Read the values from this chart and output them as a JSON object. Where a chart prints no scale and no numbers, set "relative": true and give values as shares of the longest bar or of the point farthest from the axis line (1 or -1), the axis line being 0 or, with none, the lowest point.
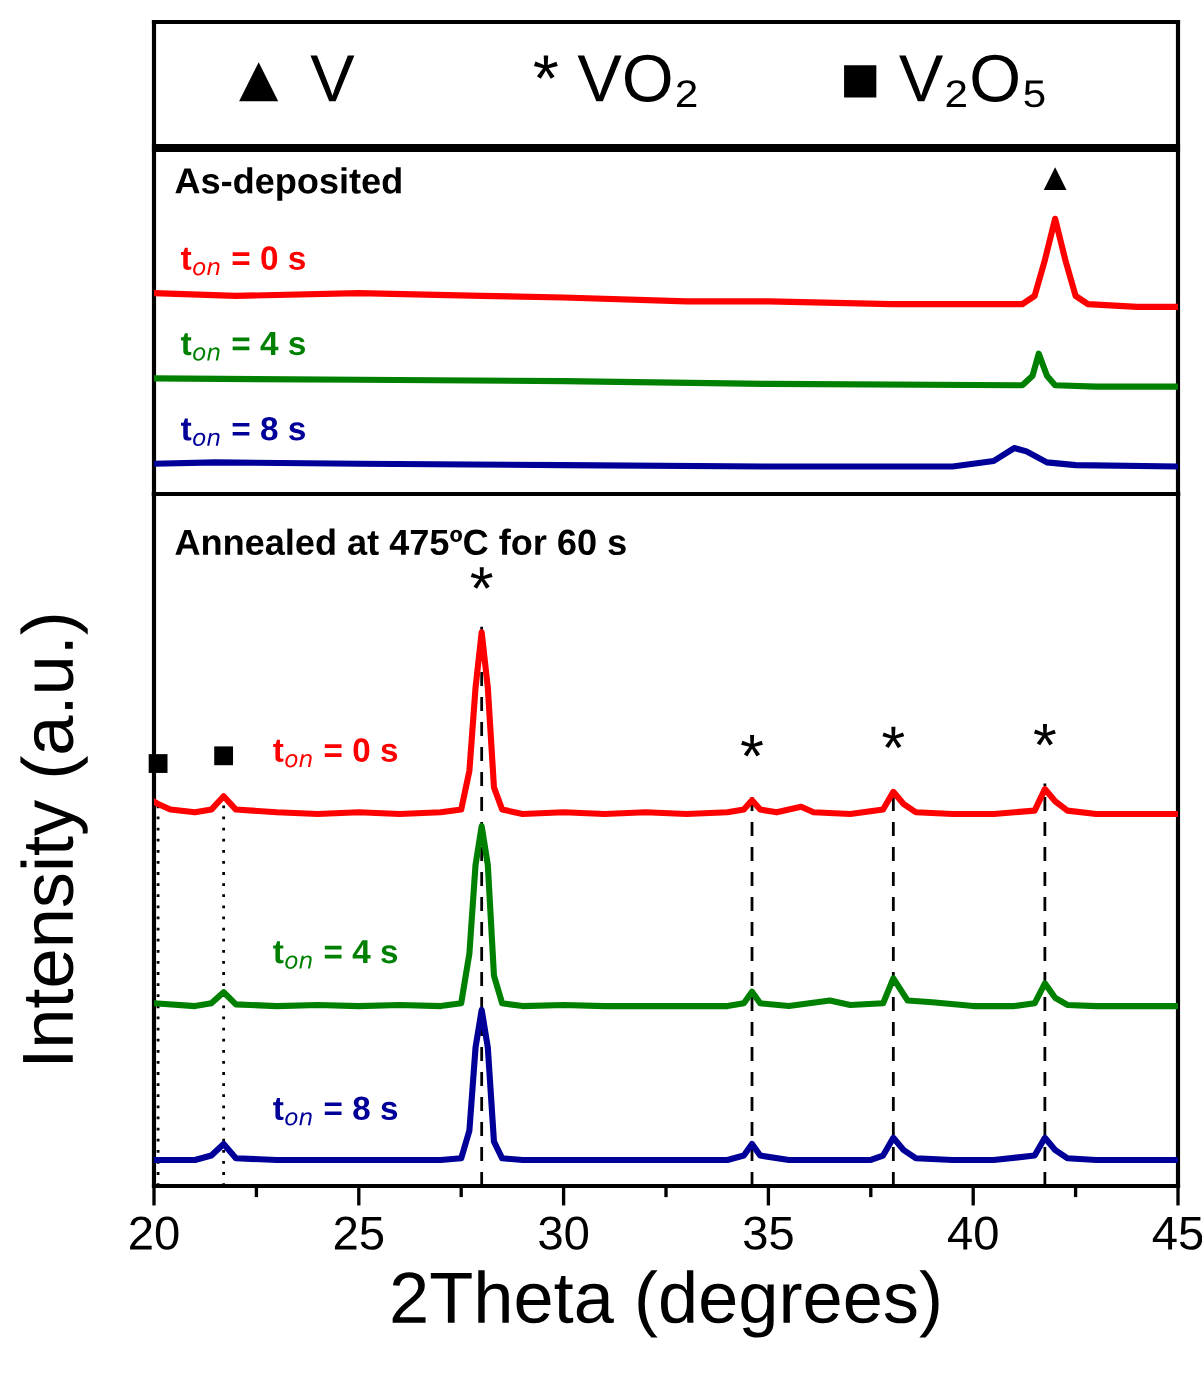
{
  "chart_data": [
    {
      "type": "other",
      "annotations": [
        "▲ V",
        "* VO₂",
        "■ V₂O₅"
      ]
    },
    {
      "type": "line",
      "title": "As-deposited",
      "relative": true,
      "xlim": [
        20,
        45
      ],
      "tick_labels": false,
      "line_style": "solid",
      "marker": "none",
      "legend": false,
      "grid": false,
      "annotations": [
        {
          "text": "▲",
          "x": 42.0,
          "y": 1.0
        }
      ],
      "series": [
        {
          "name": "t$_{on}$ = 0 s",
          "color": "#ff0000",
          "x": [
            20,
            22,
            25,
            28,
            30,
            33,
            35,
            38,
            40,
            41.2,
            41.5,
            41.75,
            42.0,
            42.25,
            42.5,
            42.8,
            44,
            45
          ],
          "values": [
            0.73,
            0.72,
            0.73,
            0.72,
            0.714,
            0.7,
            0.7,
            0.69,
            0.69,
            0.69,
            0.72,
            0.85,
            1.0,
            0.85,
            0.72,
            0.69,
            0.68,
            0.68
          ]
        },
        {
          "name": "t$_{on}$ = 4 s",
          "color": "#008000",
          "x": [
            20,
            25,
            30,
            35,
            41.2,
            41.45,
            41.6,
            41.8,
            42.0,
            43,
            45
          ],
          "values": [
            0.42,
            0.415,
            0.41,
            0.4,
            0.395,
            0.43,
            0.51,
            0.43,
            0.395,
            0.39,
            0.39
          ]
        },
        {
          "name": "t$_{on}$ = 8 s",
          "color": "#000099",
          "x": [
            20,
            21.5,
            25,
            30,
            35,
            39.5,
            40.5,
            41.0,
            41.3,
            41.8,
            42.5,
            45
          ],
          "values": [
            0.11,
            0.115,
            0.11,
            0.105,
            0.1,
            0.1,
            0.12,
            0.167,
            0.155,
            0.115,
            0.105,
            0.1
          ]
        }
      ]
    },
    {
      "type": "line",
      "title": "Annealed at 475ºC for 60 s",
      "relative": true,
      "xlim": [
        20,
        45
      ],
      "xlabel": "2Theta (degrees)",
      "ylabel": "Intensity (a.u.)",
      "tick_labels": "x",
      "line_style": "solid",
      "marker": "none",
      "legend": false,
      "grid": false,
      "xticks": [
        20,
        {
          "value": 22.5,
          "label": null
        },
        25,
        {
          "value": 27.5,
          "label": null
        },
        30,
        {
          "value": 32.5,
          "label": null
        },
        35,
        {
          "value": 37.5,
          "label": null
        },
        40,
        {
          "value": 42.5,
          "label": null
        },
        45
      ],
      "annotations": [
        {
          "text": "■",
          "x": 20.1,
          "y": 0.69
        },
        {
          "text": "■",
          "x": 21.7,
          "y": 0.704
        },
        {
          "text": "*",
          "x": 28.0,
          "y": 1.0
        },
        {
          "text": "*",
          "x": 34.6,
          "y": 0.697
        },
        {
          "text": "*",
          "x": 38.05,
          "y": 0.712
        },
        {
          "text": "*",
          "x": 41.75,
          "y": 0.717
        }
      ],
      "ref_lines": [
        {
          "axis": "x",
          "value": 20.1,
          "line_style": "dotted"
        },
        {
          "axis": "x",
          "value": 21.7,
          "line_style": "dotted"
        },
        {
          "axis": "x",
          "value": 28.0,
          "line_style": "dashed"
        },
        {
          "axis": "x",
          "value": 34.6,
          "line_style": "dashed"
        },
        {
          "axis": "x",
          "value": 38.05,
          "line_style": "dashed"
        },
        {
          "axis": "x",
          "value": 41.75,
          "line_style": "dashed"
        }
      ],
      "series": [
        {
          "name": "t$_{on}$ = 0 s",
          "color": "#ff0000",
          "x": [
            20.0,
            20.1,
            20.4,
            21.0,
            21.4,
            21.7,
            22.0,
            23,
            24,
            25,
            26,
            27,
            27.5,
            27.7,
            27.85,
            28.0,
            28.15,
            28.3,
            28.5,
            29,
            30,
            31,
            32,
            33,
            34,
            34.4,
            34.6,
            34.8,
            35.2,
            35.8,
            36.1,
            37,
            37.8,
            38.05,
            38.3,
            38.6,
            39.5,
            40.5,
            41.5,
            41.75,
            42.0,
            42.3,
            43,
            44,
            45
          ],
          "values": [
            0.694,
            0.69,
            0.68,
            0.675,
            0.68,
            0.704,
            0.68,
            0.675,
            0.672,
            0.675,
            0.672,
            0.675,
            0.68,
            0.75,
            0.9,
            1.0,
            0.9,
            0.72,
            0.68,
            0.672,
            0.675,
            0.672,
            0.675,
            0.672,
            0.675,
            0.68,
            0.697,
            0.68,
            0.675,
            0.685,
            0.675,
            0.672,
            0.68,
            0.712,
            0.69,
            0.675,
            0.672,
            0.672,
            0.678,
            0.717,
            0.695,
            0.678,
            0.672,
            0.672,
            0.672
          ]
        },
        {
          "name": "t$_{on}$ = 4 s",
          "color": "#008000",
          "x": [
            20,
            21,
            21.4,
            21.7,
            22.0,
            23,
            24,
            25,
            26,
            27,
            27.5,
            27.7,
            27.85,
            28.0,
            28.15,
            28.3,
            28.5,
            29,
            30,
            31,
            32,
            33,
            34,
            34.4,
            34.6,
            34.8,
            35.5,
            36.5,
            37,
            37.8,
            38.05,
            38.4,
            39.0,
            40,
            41,
            41.5,
            41.75,
            42.0,
            42.3,
            43,
            44,
            45
          ],
          "values": [
            0.33,
            0.325,
            0.33,
            0.35,
            0.328,
            0.325,
            0.327,
            0.325,
            0.327,
            0.325,
            0.33,
            0.42,
            0.58,
            0.65,
            0.58,
            0.38,
            0.33,
            0.325,
            0.327,
            0.325,
            0.325,
            0.325,
            0.325,
            0.33,
            0.351,
            0.33,
            0.325,
            0.335,
            0.327,
            0.33,
            0.375,
            0.335,
            0.332,
            0.325,
            0.325,
            0.33,
            0.366,
            0.34,
            0.327,
            0.325,
            0.325,
            0.325
          ]
        },
        {
          "name": "t$_{on}$ = 8 s",
          "color": "#000099",
          "x": [
            20,
            21,
            21.4,
            21.7,
            22.0,
            23,
            24,
            25,
            26,
            27,
            27.5,
            27.7,
            27.85,
            28.0,
            28.15,
            28.3,
            28.5,
            29,
            30,
            31,
            32,
            33,
            34,
            34.4,
            34.6,
            34.8,
            35.5,
            36.5,
            37.5,
            37.8,
            38.05,
            38.3,
            38.6,
            39.5,
            40.5,
            41.5,
            41.75,
            42.0,
            42.3,
            43,
            44,
            45
          ],
          "values": [
            0.047,
            0.047,
            0.055,
            0.076,
            0.05,
            0.047,
            0.047,
            0.047,
            0.047,
            0.047,
            0.05,
            0.1,
            0.25,
            0.318,
            0.25,
            0.08,
            0.05,
            0.047,
            0.047,
            0.047,
            0.047,
            0.047,
            0.047,
            0.055,
            0.076,
            0.055,
            0.047,
            0.047,
            0.047,
            0.055,
            0.087,
            0.065,
            0.05,
            0.047,
            0.047,
            0.055,
            0.087,
            0.065,
            0.05,
            0.047,
            0.047,
            0.047
          ]
        }
      ]
    }
  ]
}
